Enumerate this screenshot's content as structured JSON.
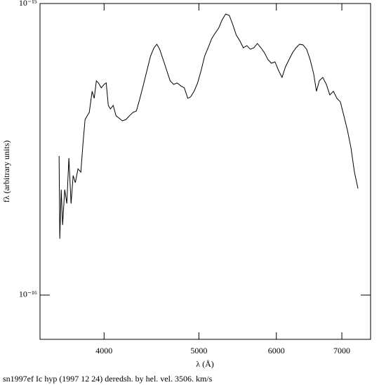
{
  "chart_data": {
    "type": "line",
    "caption": "sn1997ef Ic hyp (1997 12 24) deredsh. by hel. vel.  3506. km/s",
    "xlabel": "λ (Å)",
    "ylabel": "fλ (arbitrary units)",
    "xscale": "log",
    "yscale": "log",
    "xlim": [
      3440,
      7490
    ],
    "xticks": [
      4000,
      5000,
      6000,
      7000
    ],
    "ylim": [
      7.05e-17,
      1e-15
    ],
    "yticks": [
      {
        "value": 1e-15,
        "label": "10⁻¹⁵"
      },
      {
        "value": 1e-16,
        "label": "10⁻¹⁶"
      }
    ],
    "grid": false,
    "series": [
      {
        "color": "#000000",
        "x": [
          3598,
          3604,
          3616,
          3628,
          3646,
          3664,
          3682,
          3701,
          3719,
          3738,
          3762,
          3787,
          3806,
          3825,
          3844,
          3863,
          3889,
          3908,
          3928,
          3947,
          3974,
          4000,
          4020,
          4040,
          4060,
          4087,
          4114,
          4141,
          4176,
          4211,
          4246,
          4281,
          4316,
          4352,
          4389,
          4425,
          4462,
          4499,
          4529,
          4559,
          4597,
          4635,
          4673,
          4712,
          4751,
          4791,
          4831,
          4871,
          4903,
          4944,
          4985,
          5027,
          5068,
          5110,
          5153,
          5196,
          5239,
          5282,
          5326,
          5371,
          5415,
          5460,
          5506,
          5551,
          5598,
          5644,
          5691,
          5738,
          5786,
          5834,
          5883,
          5931,
          5981,
          6030,
          6081,
          6131,
          6182,
          6233,
          6285,
          6337,
          6390,
          6443,
          6497,
          6551,
          6594,
          6638,
          6693,
          6749,
          6805,
          6862,
          6919,
          6976,
          7034,
          7092,
          7151,
          7211,
          7271
        ],
        "values": [
          3e-16,
          1.56e-16,
          2.3e-16,
          1.74e-16,
          2.3e-16,
          2.06e-16,
          2.95e-16,
          2.06e-16,
          2.57e-16,
          2.43e-16,
          2.71e-16,
          2.64e-16,
          3.3e-16,
          4e-16,
          4.12e-16,
          4.23e-16,
          5e-16,
          4.73e-16,
          5.43e-16,
          5.34e-16,
          5.14e-16,
          5.28e-16,
          5.34e-16,
          4.47e-16,
          4.35e-16,
          4.47e-16,
          4.12e-16,
          4.05e-16,
          3.96e-16,
          4e-16,
          4.12e-16,
          4.23e-16,
          4.28e-16,
          4.73e-16,
          5.28e-16,
          5.9e-16,
          6.6e-16,
          7.05e-16,
          7.25e-16,
          6.97e-16,
          6.42e-16,
          5.9e-16,
          5.43e-16,
          5.28e-16,
          5.34e-16,
          5.22e-16,
          5.14e-16,
          4.73e-16,
          4.78e-16,
          5e-16,
          5.34e-16,
          5.9e-16,
          6.6e-16,
          7.05e-16,
          7.58e-16,
          7.92e-16,
          8.24e-16,
          8.8e-16,
          9.2e-16,
          9.1e-16,
          8.47e-16,
          7.79e-16,
          7.45e-16,
          7.05e-16,
          7.17e-16,
          6.97e-16,
          7.05e-16,
          7.29e-16,
          7.05e-16,
          6.78e-16,
          6.42e-16,
          6.24e-16,
          6.31e-16,
          5.9e-16,
          5.58e-16,
          6.07e-16,
          6.42e-16,
          6.78e-16,
          7.05e-16,
          7.25e-16,
          7.21e-16,
          6.97e-16,
          6.42e-16,
          5.74e-16,
          5e-16,
          5.43e-16,
          5.58e-16,
          5.28e-16,
          4.86e-16,
          5e-16,
          4.73e-16,
          4.6e-16,
          4.12e-16,
          3.68e-16,
          3.21e-16,
          2.64e-16,
          2.32e-16
        ]
      }
    ]
  }
}
